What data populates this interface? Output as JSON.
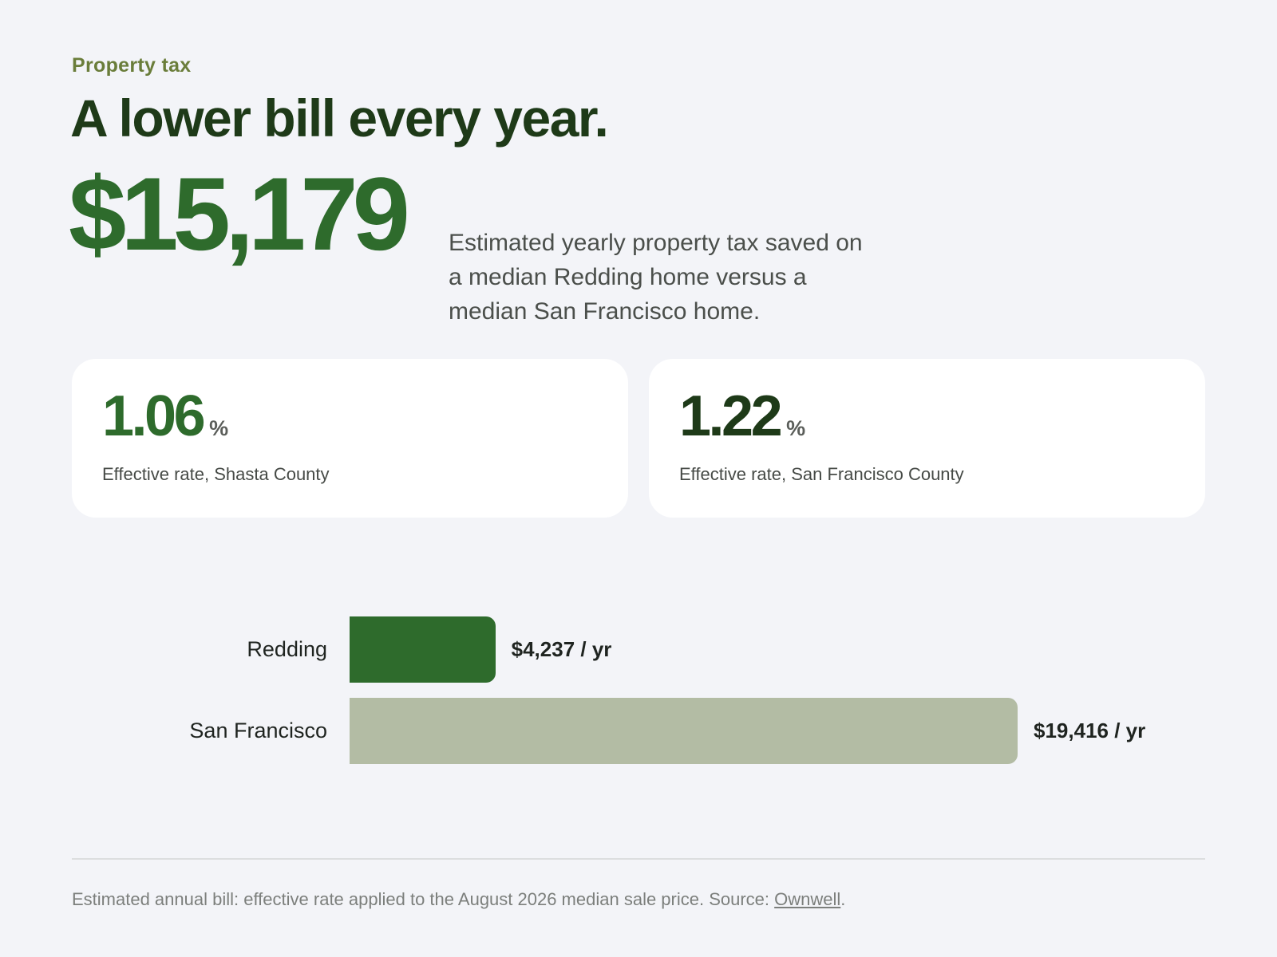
{
  "header": {
    "eyebrow": "Property tax",
    "headline": "A lower bill every year."
  },
  "hero": {
    "amount": "$15,179",
    "caption": "Estimated yearly property tax saved on a median Redding home versus a median San Francisco home."
  },
  "cards": [
    {
      "value": "1.06",
      "unit": "%",
      "label": "Effective rate, Shasta County"
    },
    {
      "value": "1.22",
      "unit": "%",
      "label": "Effective rate, San Francisco County"
    }
  ],
  "chart_data": {
    "type": "bar",
    "orientation": "horizontal",
    "categories": [
      "Redding",
      "San Francisco"
    ],
    "values": [
      4237,
      19416
    ],
    "value_labels": [
      "$4,237 / yr",
      "$19,416 / yr"
    ],
    "colors": [
      "#2e6b2c",
      "#b3bca4"
    ],
    "title": "",
    "xlabel": "",
    "ylabel": "",
    "xlim": [
      0,
      19416
    ],
    "grid": false,
    "legend": "none"
  },
  "footer": {
    "note_prefix": "Estimated annual bill: effective rate applied to the August 2026 median sale price. Source: ",
    "source_link": "Ownwell",
    "note_suffix": "."
  }
}
